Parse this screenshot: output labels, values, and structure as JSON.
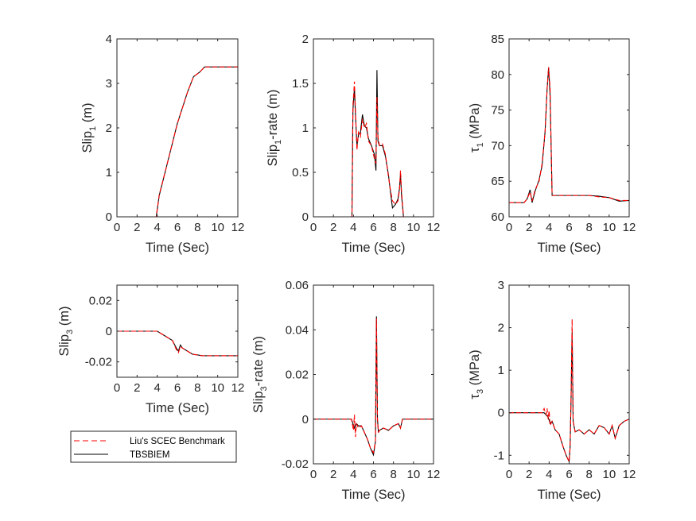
{
  "chart_data": [
    {
      "type": "line",
      "id": "slip1",
      "xlabel": "Time (Sec)",
      "ylabel_parts": [
        "Slip",
        "1",
        " (m)"
      ],
      "xlim": [
        0,
        12
      ],
      "ylim": [
        0,
        4
      ],
      "xticks": [
        0,
        2,
        4,
        6,
        8,
        10,
        12
      ],
      "yticks": [
        0,
        1,
        2,
        3,
        4
      ],
      "ytick_labels": [
        "0",
        "1",
        "2",
        "3",
        "4"
      ],
      "series": [
        {
          "name": "Liu's SCEC Benchmark",
          "x": [
            0,
            3.9,
            4.2,
            5,
            6,
            7,
            7.6,
            8.2,
            8.7,
            9.5,
            12
          ],
          "y": [
            0,
            0,
            0.5,
            1.2,
            2.1,
            2.8,
            3.15,
            3.25,
            3.37,
            3.37,
            3.37
          ]
        },
        {
          "name": "TBSBIEM",
          "x": [
            0,
            3.9,
            4.2,
            5,
            6,
            7,
            7.6,
            8.2,
            8.7,
            9.5,
            12
          ],
          "y": [
            0,
            0,
            0.48,
            1.2,
            2.1,
            2.8,
            3.15,
            3.25,
            3.37,
            3.37,
            3.37
          ]
        }
      ]
    },
    {
      "type": "line",
      "id": "slip1rate",
      "xlabel": "Time (Sec)",
      "ylabel_parts": [
        "Slip",
        "1",
        "-rate (m)"
      ],
      "xlim": [
        0,
        12
      ],
      "ylim": [
        0,
        2
      ],
      "xticks": [
        0,
        2,
        4,
        6,
        8,
        10,
        12
      ],
      "yticks": [
        0,
        0.5,
        1,
        1.5,
        2
      ],
      "ytick_labels": [
        "0",
        "0.5",
        "1",
        "1.5",
        "2"
      ],
      "series": [
        {
          "name": "Liu's SCEC Benchmark",
          "x": [
            0,
            3.85,
            3.95,
            4.1,
            4.2,
            4.35,
            4.5,
            4.7,
            4.9,
            5.1,
            5.3,
            5.5,
            5.8,
            6.1,
            6.25,
            6.35,
            6.45,
            6.6,
            6.9,
            7.2,
            7.5,
            7.7,
            7.9,
            8.2,
            8.45,
            8.6,
            8.7,
            8.8,
            9.0,
            12
          ],
          "y": [
            0,
            0,
            1.25,
            1.52,
            1.2,
            0.75,
            0.95,
            0.9,
            1.1,
            1.0,
            1.05,
            0.85,
            0.8,
            0.65,
            0.6,
            1.35,
            0.9,
            0.8,
            0.82,
            0.7,
            0.45,
            0.3,
            0.18,
            0.14,
            0.18,
            0.3,
            0.52,
            0.3,
            0,
            0
          ]
        },
        {
          "name": "TBSBIEM",
          "x": [
            0,
            3.85,
            3.95,
            4.1,
            4.2,
            4.35,
            4.5,
            4.7,
            4.9,
            5.1,
            5.3,
            5.5,
            5.8,
            6.1,
            6.25,
            6.35,
            6.45,
            6.6,
            6.9,
            7.2,
            7.5,
            7.7,
            7.9,
            8.2,
            8.45,
            8.6,
            8.7,
            8.8,
            9.0,
            12
          ],
          "y": [
            0,
            0,
            1.2,
            1.45,
            1.15,
            0.8,
            0.92,
            0.95,
            1.15,
            1.02,
            1.0,
            0.88,
            0.8,
            0.7,
            0.52,
            1.65,
            0.85,
            0.8,
            0.8,
            0.68,
            0.47,
            0.28,
            0.1,
            0.14,
            0.2,
            0.32,
            0.48,
            0.25,
            0,
            0
          ]
        }
      ]
    },
    {
      "type": "line",
      "id": "tau1",
      "xlabel": "Time (Sec)",
      "ylabel_parts": [
        "τ",
        "1",
        " (MPa)"
      ],
      "xlim": [
        0,
        12
      ],
      "ylim": [
        60,
        85
      ],
      "xticks": [
        0,
        2,
        4,
        6,
        8,
        10,
        12
      ],
      "yticks": [
        60,
        65,
        70,
        75,
        80,
        85
      ],
      "ytick_labels": [
        "60",
        "65",
        "70",
        "75",
        "80",
        "85"
      ],
      "series": [
        {
          "name": "Liu's SCEC Benchmark",
          "x": [
            0,
            1.5,
            1.8,
            2.1,
            2.3,
            2.6,
            3.0,
            3.3,
            3.6,
            3.8,
            3.95,
            4.1,
            4.2,
            4.3,
            6,
            8,
            9,
            10,
            11,
            12
          ],
          "y": [
            62,
            62,
            62.5,
            63.5,
            62.2,
            63.8,
            65,
            67.5,
            72,
            78,
            81,
            78,
            70,
            63,
            63,
            63,
            62.8,
            62.7,
            62.3,
            62.3
          ]
        },
        {
          "name": "TBSBIEM",
          "x": [
            0,
            1.5,
            1.8,
            2.1,
            2.3,
            2.6,
            3.0,
            3.3,
            3.6,
            3.8,
            3.95,
            4.1,
            4.2,
            4.3,
            6,
            8,
            9,
            10,
            11,
            12
          ],
          "y": [
            62,
            62,
            62.5,
            63.8,
            62.0,
            63.6,
            65.2,
            67.2,
            72,
            78,
            81,
            77,
            70,
            63,
            63,
            63,
            62.9,
            62.7,
            62.2,
            62.3
          ]
        }
      ]
    },
    {
      "type": "line",
      "id": "slip3",
      "xlabel": "Time (Sec)",
      "ylabel_parts": [
        "Slip",
        "3",
        " (m)"
      ],
      "xlim": [
        0,
        12
      ],
      "ylim": [
        -0.03,
        0.03
      ],
      "xticks": [
        0,
        2,
        4,
        6,
        8,
        10,
        12
      ],
      "yticks": [
        -0.02,
        0,
        0.02
      ],
      "ytick_labels": [
        "-0.02",
        "0",
        "0.02"
      ],
      "series": [
        {
          "name": "Liu's SCEC Benchmark",
          "x": [
            0,
            4,
            4.5,
            5,
            5.5,
            5.9,
            6.1,
            6.3,
            6.5,
            7,
            7.5,
            8,
            8.5,
            9,
            12
          ],
          "y": [
            0,
            0,
            -0.002,
            -0.004,
            -0.006,
            -0.012,
            -0.014,
            -0.01,
            -0.011,
            -0.013,
            -0.015,
            -0.0155,
            -0.016,
            -0.016,
            -0.016
          ]
        },
        {
          "name": "TBSBIEM",
          "x": [
            0,
            4,
            4.5,
            5,
            5.5,
            5.9,
            6.1,
            6.3,
            6.5,
            7,
            7.5,
            8,
            8.5,
            9,
            12
          ],
          "y": [
            0,
            0,
            -0.002,
            -0.004,
            -0.006,
            -0.011,
            -0.013,
            -0.009,
            -0.011,
            -0.013,
            -0.015,
            -0.0155,
            -0.016,
            -0.016,
            -0.016
          ]
        }
      ]
    },
    {
      "type": "line",
      "id": "slip3rate",
      "xlabel": "Time (Sec)",
      "ylabel_parts": [
        "Slip",
        "3",
        "-rate (m)"
      ],
      "xlim": [
        0,
        12
      ],
      "ylim": [
        -0.02,
        0.06
      ],
      "xticks": [
        0,
        2,
        4,
        6,
        8,
        10,
        12
      ],
      "yticks": [
        -0.02,
        0,
        0.02,
        0.04,
        0.06
      ],
      "ytick_labels": [
        "-0.02",
        "0",
        "0.02",
        "0.04",
        "0.06"
      ],
      "series": [
        {
          "name": "Liu's SCEC Benchmark",
          "x": [
            0,
            3.8,
            4.0,
            4.1,
            4.2,
            4.3,
            4.5,
            4.8,
            5.1,
            5.4,
            5.7,
            6.0,
            6.2,
            6.3,
            6.4,
            6.5,
            6.6,
            7.0,
            7.5,
            8.0,
            8.5,
            8.7,
            8.9,
            9.2,
            12
          ],
          "y": [
            0,
            0,
            -0.005,
            0.002,
            -0.008,
            -0.002,
            -0.004,
            -0.003,
            -0.006,
            -0.009,
            -0.013,
            -0.015,
            -0.01,
            0.045,
            0.0,
            -0.006,
            -0.005,
            -0.004,
            -0.005,
            -0.003,
            -0.002,
            -0.004,
            0.0,
            0.0,
            0.0
          ]
        },
        {
          "name": "TBSBIEM",
          "x": [
            0,
            3.8,
            4.1,
            4.3,
            4.5,
            4.8,
            5.1,
            5.4,
            5.7,
            6.0,
            6.2,
            6.3,
            6.4,
            6.5,
            6.6,
            7.0,
            7.5,
            8.0,
            8.5,
            8.7,
            8.9,
            9.2,
            12
          ],
          "y": [
            0,
            0,
            -0.004,
            -0.002,
            -0.003,
            -0.003,
            -0.006,
            -0.009,
            -0.013,
            -0.016,
            -0.01,
            0.046,
            0.0,
            -0.006,
            -0.005,
            -0.004,
            -0.005,
            -0.003,
            -0.002,
            -0.004,
            0.0,
            0.0,
            0.0
          ]
        }
      ]
    },
    {
      "type": "line",
      "id": "tau3",
      "xlabel": "Time (Sec)",
      "ylabel_parts": [
        "τ",
        "3",
        " (MPa)"
      ],
      "xlim": [
        0,
        12
      ],
      "ylim": [
        -1.2,
        3
      ],
      "xticks": [
        0,
        2,
        4,
        6,
        8,
        10,
        12
      ],
      "yticks": [
        -1,
        0,
        1,
        2,
        3
      ],
      "ytick_labels": [
        "-1",
        "0",
        "1",
        "2",
        "3"
      ],
      "series": [
        {
          "name": "Liu's SCEC Benchmark",
          "x": [
            0,
            3.0,
            3.3,
            3.5,
            3.7,
            3.8,
            3.9,
            4.0,
            4.1,
            4.3,
            4.6,
            5.0,
            5.4,
            5.7,
            5.9,
            6.0,
            6.1,
            6.2,
            6.3,
            6.4,
            6.6,
            7.0,
            7.5,
            8.0,
            8.5,
            9.0,
            9.5,
            10.0,
            10.3,
            10.6,
            11.0,
            11.5,
            12
          ],
          "y": [
            0,
            0,
            0.0,
            0.1,
            -0.05,
            0.1,
            -0.15,
            0.05,
            -0.3,
            -0.2,
            -0.4,
            -0.5,
            -0.8,
            -1.0,
            -1.1,
            -1.15,
            -0.8,
            0.5,
            2.2,
            -0.2,
            -0.45,
            -0.4,
            -0.5,
            -0.4,
            -0.5,
            -0.3,
            -0.35,
            -0.5,
            -0.3,
            -0.6,
            -0.3,
            -0.2,
            -0.15
          ]
        },
        {
          "name": "TBSBIEM",
          "x": [
            0,
            3.0,
            3.5,
            3.9,
            4.1,
            4.3,
            4.6,
            5.0,
            5.4,
            5.7,
            5.9,
            6.0,
            6.1,
            6.2,
            6.3,
            6.4,
            6.6,
            7.0,
            7.5,
            8.0,
            8.5,
            9.0,
            9.5,
            10.0,
            10.3,
            10.6,
            11.0,
            11.5,
            12
          ],
          "y": [
            0,
            0,
            0.0,
            -0.1,
            -0.25,
            -0.2,
            -0.4,
            -0.5,
            -0.8,
            -1.0,
            -1.1,
            -1.15,
            -0.8,
            0.4,
            1.9,
            -0.2,
            -0.45,
            -0.4,
            -0.5,
            -0.4,
            -0.5,
            -0.3,
            -0.35,
            -0.5,
            -0.3,
            -0.6,
            -0.3,
            -0.2,
            -0.15
          ]
        }
      ]
    }
  ],
  "legend": {
    "entries": [
      {
        "label": "Liu's SCEC Benchmark",
        "color": "#ff0000",
        "style": "dashed"
      },
      {
        "label": "TBSBIEM",
        "color": "#000000",
        "style": "solid"
      }
    ]
  },
  "colors": {
    "benchmark": "#ff0000",
    "tbsbiem": "#000000",
    "axis": "#262626"
  }
}
